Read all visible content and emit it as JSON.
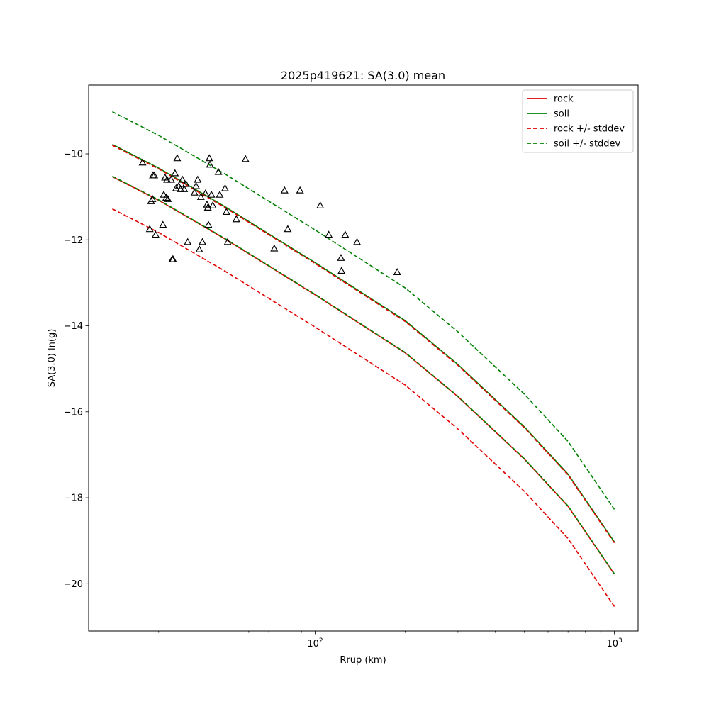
{
  "chart_data": {
    "type": "line",
    "title": "2025p419621: SA(3.0) mean",
    "xlabel": "Rrup (km)",
    "ylabel": "SA(3.0) ln(g)",
    "xscale": "log",
    "xlim": [
      17.5,
      1200
    ],
    "ylim": [
      -21.1,
      -8.4
    ],
    "xticks": [
      {
        "base": "10",
        "exp": "2",
        "value": 100
      },
      {
        "base": "10",
        "exp": "3",
        "value": 1000
      }
    ],
    "yticks": [
      {
        "label": "−10",
        "value": -10
      },
      {
        "label": "−12",
        "value": -12
      },
      {
        "label": "−14",
        "value": -14
      },
      {
        "label": "−16",
        "value": -16
      },
      {
        "label": "−18",
        "value": -18
      },
      {
        "label": "−20",
        "value": -20
      }
    ],
    "legend_placement": "top-right",
    "colors": {
      "rock": "#e00000",
      "soil": "#008000",
      "observed": "#000000"
    },
    "series": [
      {
        "name": "rock",
        "style": "solid",
        "color": "#e00000",
        "x": [
          21,
          30,
          50,
          100,
          200,
          300,
          500,
          700,
          1000
        ],
        "y": [
          -10.53,
          -11.08,
          -11.98,
          -13.28,
          -14.63,
          -15.65,
          -17.1,
          -18.2,
          -19.78
        ]
      },
      {
        "name": "soil",
        "style": "solid",
        "color": "#008000",
        "x": [
          21,
          30,
          50,
          100,
          200,
          300,
          500,
          700,
          1000
        ],
        "y": [
          -9.78,
          -10.33,
          -11.23,
          -12.53,
          -13.88,
          -14.9,
          -16.35,
          -17.45,
          -19.03
        ]
      },
      {
        "name": "rock +/- stddev",
        "style": "dashed",
        "color": "#e00000",
        "x": [
          21,
          30,
          50,
          100,
          200,
          300,
          500,
          700,
          1000
        ],
        "y": [
          -9.8,
          -10.35,
          -11.25,
          -12.55,
          -13.9,
          -14.92,
          -16.37,
          -17.47,
          -19.05
        ]
      },
      {
        "name": "",
        "style": "dashed",
        "color": "#e00000",
        "x": [
          21,
          30,
          50,
          100,
          200,
          300,
          500,
          700,
          1000
        ],
        "y": [
          -11.28,
          -11.83,
          -12.73,
          -14.03,
          -15.38,
          -16.4,
          -17.85,
          -18.95,
          -20.53
        ]
      },
      {
        "name": "soil +/- stddev",
        "style": "dashed",
        "color": "#008000",
        "x": [
          21,
          30,
          50,
          100,
          200,
          300,
          500,
          700,
          1000
        ],
        "y": [
          -9.02,
          -9.57,
          -10.47,
          -11.77,
          -13.12,
          -14.14,
          -15.59,
          -16.69,
          -18.27
        ]
      },
      {
        "name": "",
        "style": "dashed",
        "color": "#008000",
        "x": [
          21,
          30,
          50,
          100,
          200,
          300,
          500,
          700,
          1000
        ],
        "y": [
          -10.52,
          -11.07,
          -11.97,
          -13.27,
          -14.62,
          -15.64,
          -17.09,
          -18.19,
          -19.77
        ]
      }
    ],
    "observations": {
      "marker": "open-triangle",
      "points": [
        [
          26.5,
          -10.2
        ],
        [
          28,
          -11.75
        ],
        [
          28.3,
          -11.1
        ],
        [
          28.6,
          -11.05
        ],
        [
          28.7,
          -10.5
        ],
        [
          29,
          -10.5
        ],
        [
          29.3,
          -11.88
        ],
        [
          31,
          -11.65
        ],
        [
          31.2,
          -10.95
        ],
        [
          31.5,
          -10.55
        ],
        [
          31.8,
          -11.02
        ],
        [
          32,
          -10.6
        ],
        [
          32.2,
          -11.05
        ],
        [
          33,
          -10.6
        ],
        [
          33.3,
          -12.45
        ],
        [
          33.5,
          -12.45
        ],
        [
          34,
          -10.45
        ],
        [
          34.3,
          -10.8
        ],
        [
          34.6,
          -10.1
        ],
        [
          35,
          -10.75
        ],
        [
          35.5,
          -10.82
        ],
        [
          36,
          -10.6
        ],
        [
          36.5,
          -10.82
        ],
        [
          37,
          -10.7
        ],
        [
          37.5,
          -12.05
        ],
        [
          39.5,
          -10.9
        ],
        [
          40,
          -10.75
        ],
        [
          40.5,
          -10.6
        ],
        [
          41,
          -12.22
        ],
        [
          41.5,
          -11.0
        ],
        [
          42,
          -12.05
        ],
        [
          43,
          -10.92
        ],
        [
          43.5,
          -11.18
        ],
        [
          43.8,
          -11.25
        ],
        [
          44,
          -11.65
        ],
        [
          44.3,
          -10.1
        ],
        [
          44.5,
          -10.25
        ],
        [
          45,
          -10.95
        ],
        [
          45.5,
          -11.2
        ],
        [
          47.5,
          -10.42
        ],
        [
          48,
          -10.95
        ],
        [
          50,
          -10.8
        ],
        [
          50.5,
          -11.35
        ],
        [
          51,
          -12.05
        ],
        [
          54.5,
          -11.52
        ],
        [
          58.5,
          -10.12
        ],
        [
          73,
          -12.2
        ],
        [
          79,
          -10.85
        ],
        [
          81,
          -11.75
        ],
        [
          89,
          -10.85
        ],
        [
          104,
          -11.2
        ],
        [
          111,
          -11.88
        ],
        [
          122,
          -12.42
        ],
        [
          122.5,
          -12.72
        ],
        [
          126,
          -11.88
        ],
        [
          138,
          -12.05
        ],
        [
          188,
          -12.75
        ]
      ]
    }
  }
}
